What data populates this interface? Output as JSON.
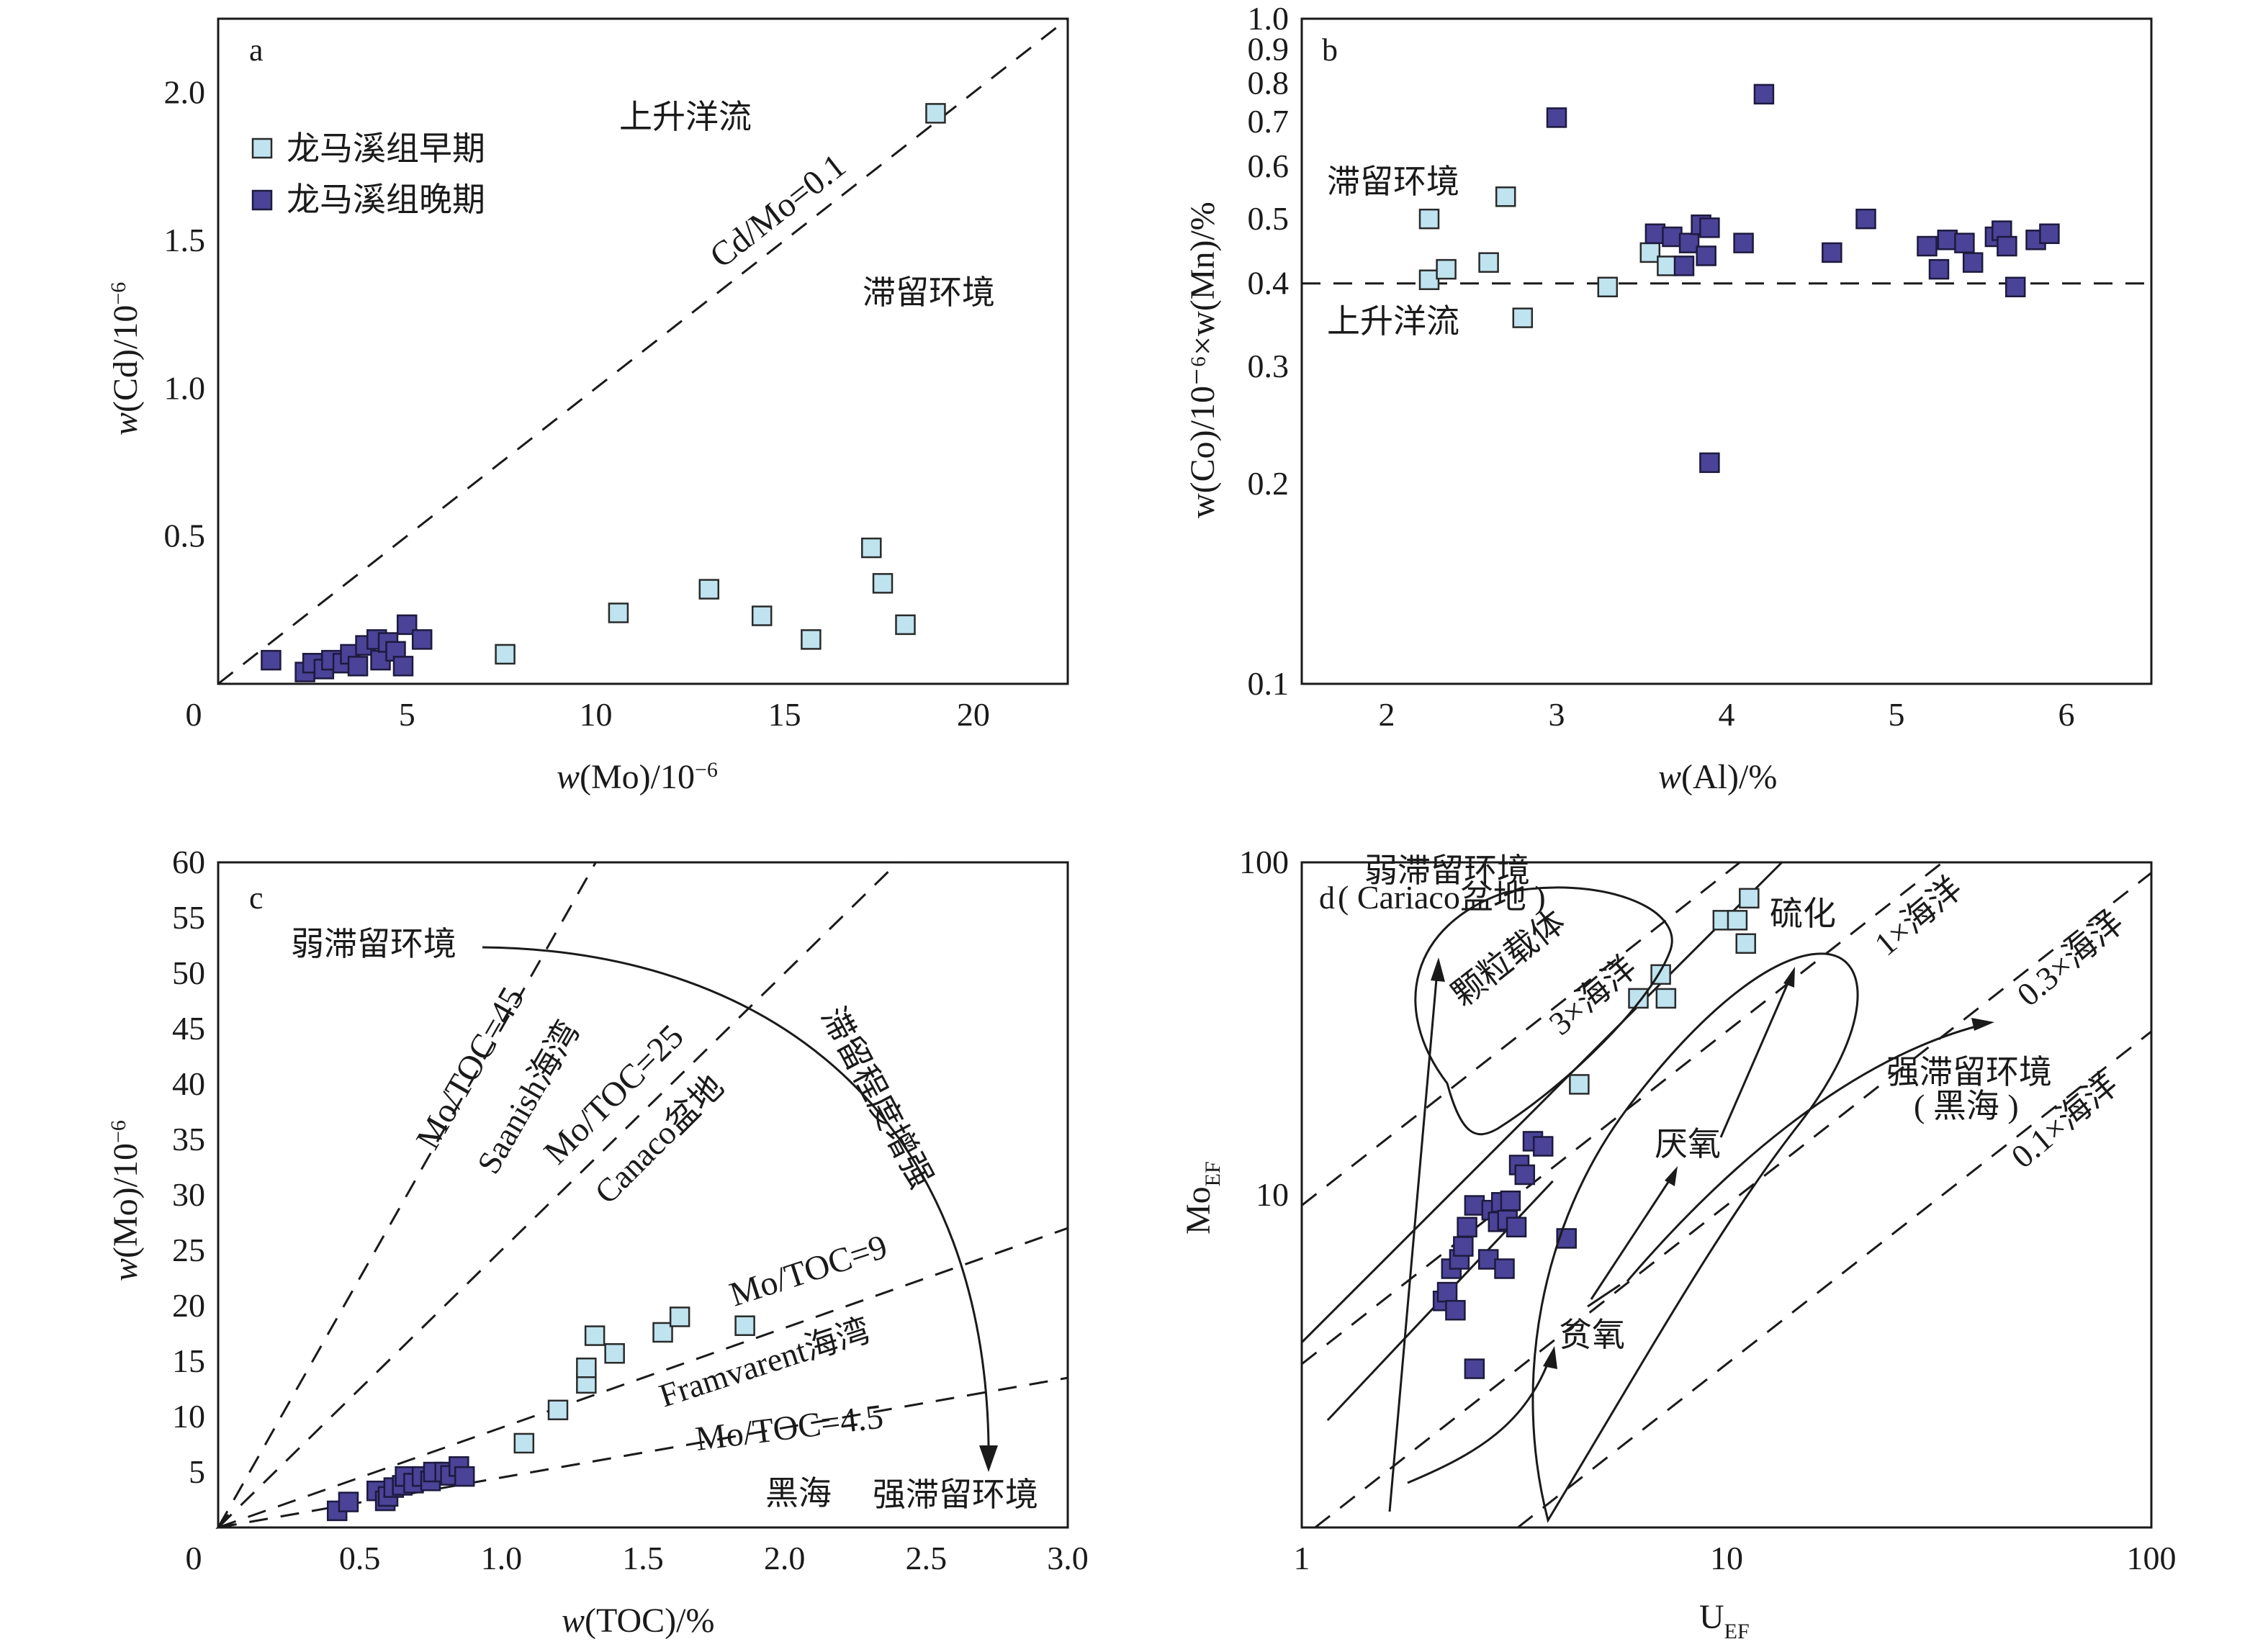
{
  "legend": {
    "early": "龙马溪组早期",
    "late": "龙马溪组晚期",
    "early_color": "#bfe3ef",
    "late_color": "#4b4397"
  },
  "panel_a": {
    "letter": "a",
    "xlabel_var": "w",
    "xlabel_rest": "(Mo)/10",
    "xlabel_exp": "−6",
    "ylabel_var": "w",
    "ylabel_rest": "(Cd)/10",
    "ylabel_exp": "−6",
    "upwelling": "上升洋流",
    "stagnant": "滞留环境",
    "line_label": "Cd/Mo=0.1",
    "xticks": [
      "0",
      "5",
      "10",
      "15",
      "20"
    ],
    "yticks": [
      "0.5",
      "1.0",
      "1.5",
      "2.0"
    ]
  },
  "panel_b": {
    "letter": "b",
    "xlabel_var": "w",
    "xlabel_rest": "(Al)/%",
    "ylabel": "w(Co)/10⁻⁶×w(Mn)/%",
    "stagnant": "滞留环境",
    "upwelling": "上升洋流",
    "xticks": [
      "2",
      "3",
      "4",
      "5",
      "6"
    ],
    "yticks": [
      "0.1",
      "0.2",
      "0.3",
      "0.4",
      "0.5",
      "0.6",
      "0.7",
      "0.8",
      "0.9",
      "1.0"
    ]
  },
  "panel_c": {
    "letter": "c",
    "xlabel_var": "w",
    "xlabel_rest": "(TOC)/%",
    "ylabel_var": "w",
    "ylabel_rest": "(Mo)/10",
    "ylabel_exp": "−6",
    "weak": "弱滞留环境",
    "strong": "强滞留环境",
    "increasing": "滞留程度增强",
    "black_sea": "黑海",
    "l45": "Mo/TOC=45",
    "saanich": "Saanish海湾",
    "l25": "Mo/TOC=25",
    "cariaco": "Canaco盆地",
    "l9": "Mo/TOC=9",
    "framvaren": "Framvarent海湾",
    "l45b": "Mo/TOC=4.5",
    "xticks": [
      "0",
      "0.5",
      "1.0",
      "1.5",
      "2.0",
      "2.5",
      "3.0"
    ],
    "yticks": [
      "5",
      "10",
      "15",
      "20",
      "25",
      "30",
      "35",
      "40",
      "45",
      "50",
      "55",
      "60"
    ]
  },
  "panel_d": {
    "letter": "d",
    "xlabel": "U",
    "xlabel_sub": "EF",
    "ylabel": "Mo",
    "ylabel_sub": "EF",
    "weak": "弱滞留环境",
    "weak_sub": "( Cariaco盆地 )",
    "particle": "颗粒载体",
    "sulfide": "硫化",
    "anoxic": "厌氧",
    "suboxic": "贫氧",
    "strong": "强滞留环境",
    "black_sea": "( 黑海 )",
    "l3": "3×海洋",
    "l1": "1×海洋",
    "l03": "0.3×海洋",
    "l01": "0.1×海洋",
    "xticks": [
      "1",
      "10",
      "100"
    ],
    "yticks": [
      "10",
      "100"
    ]
  },
  "chart_data": [
    {
      "type": "scatter",
      "panel": "a",
      "xlabel": "w(Mo)/10⁻⁶",
      "ylabel": "w(Cd)/10⁻⁶",
      "xlim": [
        0,
        22.5
      ],
      "ylim": [
        0,
        2.25
      ],
      "reference_lines": [
        {
          "label": "Cd/Mo=0.1",
          "slope": 0.1,
          "style": "dashed"
        }
      ],
      "series": [
        {
          "name": "龙马溪组早期",
          "points": [
            [
              7.6,
              0.1
            ],
            [
              10.6,
              0.24
            ],
            [
              13.0,
              0.32
            ],
            [
              14.4,
              0.23
            ],
            [
              15.7,
              0.15
            ],
            [
              17.3,
              0.46
            ],
            [
              17.6,
              0.34
            ],
            [
              18.2,
              0.2
            ],
            [
              19.0,
              1.93
            ]
          ]
        },
        {
          "name": "龙马溪组晚期",
          "points": [
            [
              1.4,
              0.08
            ],
            [
              2.3,
              0.04
            ],
            [
              2.5,
              0.07
            ],
            [
              2.8,
              0.05
            ],
            [
              3.0,
              0.08
            ],
            [
              3.3,
              0.07
            ],
            [
              3.5,
              0.1
            ],
            [
              3.7,
              0.06
            ],
            [
              3.9,
              0.13
            ],
            [
              4.2,
              0.15
            ],
            [
              4.3,
              0.08
            ],
            [
              4.5,
              0.14
            ],
            [
              4.7,
              0.11
            ],
            [
              4.9,
              0.06
            ],
            [
              5.0,
              0.2
            ],
            [
              5.4,
              0.15
            ]
          ]
        }
      ]
    },
    {
      "type": "scatter",
      "panel": "b",
      "xlabel": "w(Al)/%",
      "ylabel": "w(Co)/10⁻⁶×w(Mn)/%",
      "y_scale": "log",
      "xlim": [
        1.5,
        6.5
      ],
      "ylim": [
        0.1,
        1.0
      ],
      "reference_lines": [
        {
          "y": 0.4,
          "style": "dashed"
        }
      ],
      "series": [
        {
          "name": "龙马溪组早期",
          "points": [
            [
              2.25,
              0.5
            ],
            [
              2.25,
              0.405
            ],
            [
              2.35,
              0.42
            ],
            [
              2.6,
              0.43
            ],
            [
              2.7,
              0.54
            ],
            [
              2.8,
              0.355
            ],
            [
              3.3,
              0.395
            ],
            [
              3.55,
              0.445
            ],
            [
              3.65,
              0.425
            ]
          ]
        },
        {
          "name": "龙马溪组晚期",
          "points": [
            [
              3.0,
              0.71
            ],
            [
              3.58,
              0.475
            ],
            [
              3.68,
              0.47
            ],
            [
              3.75,
              0.425
            ],
            [
              3.78,
              0.46
            ],
            [
              3.85,
              0.49
            ],
            [
              3.88,
              0.44
            ],
            [
              3.9,
              0.485
            ],
            [
              3.9,
              0.215
            ],
            [
              4.1,
              0.46
            ],
            [
              4.22,
              0.77
            ],
            [
              4.62,
              0.445
            ],
            [
              4.82,
              0.5
            ],
            [
              5.18,
              0.455
            ],
            [
              5.25,
              0.42
            ],
            [
              5.3,
              0.465
            ],
            [
              5.4,
              0.46
            ],
            [
              5.45,
              0.43
            ],
            [
              5.58,
              0.47
            ],
            [
              5.62,
              0.48
            ],
            [
              5.65,
              0.455
            ],
            [
              5.7,
              0.395
            ],
            [
              5.82,
              0.465
            ],
            [
              5.9,
              0.475
            ]
          ]
        }
      ]
    },
    {
      "type": "scatter",
      "panel": "c",
      "xlabel": "w(TOC)/%",
      "ylabel": "w(Mo)/10⁻⁶",
      "xlim": [
        0,
        3.0
      ],
      "ylim": [
        0,
        60
      ],
      "reference_lines": [
        {
          "label": "Mo/TOC=45",
          "slope": 45
        },
        {
          "label": "Mo/TOC=25",
          "slope": 25
        },
        {
          "label": "Mo/TOC=9",
          "slope": 9
        },
        {
          "label": "Mo/TOC=4.5",
          "slope": 4.5
        }
      ],
      "series": [
        {
          "name": "龙马溪组早期",
          "points": [
            [
              1.08,
              7.6
            ],
            [
              1.2,
              10.6
            ],
            [
              1.3,
              13.0
            ],
            [
              1.3,
              14.4
            ],
            [
              1.33,
              17.3
            ],
            [
              1.4,
              15.7
            ],
            [
              1.57,
              17.6
            ],
            [
              1.63,
              19.0
            ],
            [
              1.86,
              18.2
            ]
          ]
        },
        {
          "name": "龙马溪组晚期",
          "points": [
            [
              0.42,
              1.5
            ],
            [
              0.46,
              2.3
            ],
            [
              0.56,
              3.3
            ],
            [
              0.59,
              2.4
            ],
            [
              0.6,
              2.8
            ],
            [
              0.62,
              3.6
            ],
            [
              0.65,
              3.8
            ],
            [
              0.66,
              4.6
            ],
            [
              0.69,
              4.0
            ],
            [
              0.72,
              4.6
            ],
            [
              0.75,
              4.2
            ],
            [
              0.76,
              5.0
            ],
            [
              0.8,
              5.0
            ],
            [
              0.82,
              4.7
            ],
            [
              0.85,
              5.5
            ],
            [
              0.87,
              4.6
            ]
          ]
        }
      ]
    },
    {
      "type": "scatter",
      "panel": "d",
      "xlabel": "U_EF",
      "ylabel": "Mo_EF",
      "x_scale": "log",
      "y_scale": "log",
      "xlim": [
        1,
        100
      ],
      "ylim": [
        1,
        100
      ],
      "reference_lines": [
        {
          "label": "3×海洋",
          "ratio": 9.3
        },
        {
          "label": "1×海洋",
          "ratio": 3.1
        },
        {
          "label": "0.3×海洋",
          "ratio": 0.93
        },
        {
          "label": "0.1×海洋",
          "ratio": 0.31
        }
      ],
      "series": [
        {
          "name": "龙马溪组早期",
          "points": [
            [
              4.5,
              21.5
            ],
            [
              6.2,
              39
            ],
            [
              7.0,
              46
            ],
            [
              7.2,
              39
            ],
            [
              9.8,
              67
            ],
            [
              10.6,
              67
            ],
            [
              11.1,
              57
            ],
            [
              11.3,
              78
            ]
          ]
        },
        {
          "name": "龙马溪组晚期",
          "points": [
            [
              2.15,
              4.8
            ],
            [
              2.2,
              5.1
            ],
            [
              2.25,
              6.0
            ],
            [
              2.3,
              4.5
            ],
            [
              2.35,
              6.4
            ],
            [
              2.4,
              7.0
            ],
            [
              2.45,
              8.0
            ],
            [
              2.55,
              9.3
            ],
            [
              2.55,
              3.0
            ],
            [
              2.75,
              6.4
            ],
            [
              2.8,
              9.0
            ],
            [
              2.9,
              8.3
            ],
            [
              2.95,
              9.5
            ],
            [
              3.0,
              6.0
            ],
            [
              3.05,
              8.4
            ],
            [
              3.1,
              9.6
            ],
            [
              3.2,
              8.0
            ],
            [
              3.25,
              12.3
            ],
            [
              3.35,
              11.5
            ],
            [
              3.5,
              14.5
            ],
            [
              3.7,
              14.0
            ],
            [
              4.2,
              7.4
            ]
          ]
        }
      ]
    }
  ]
}
